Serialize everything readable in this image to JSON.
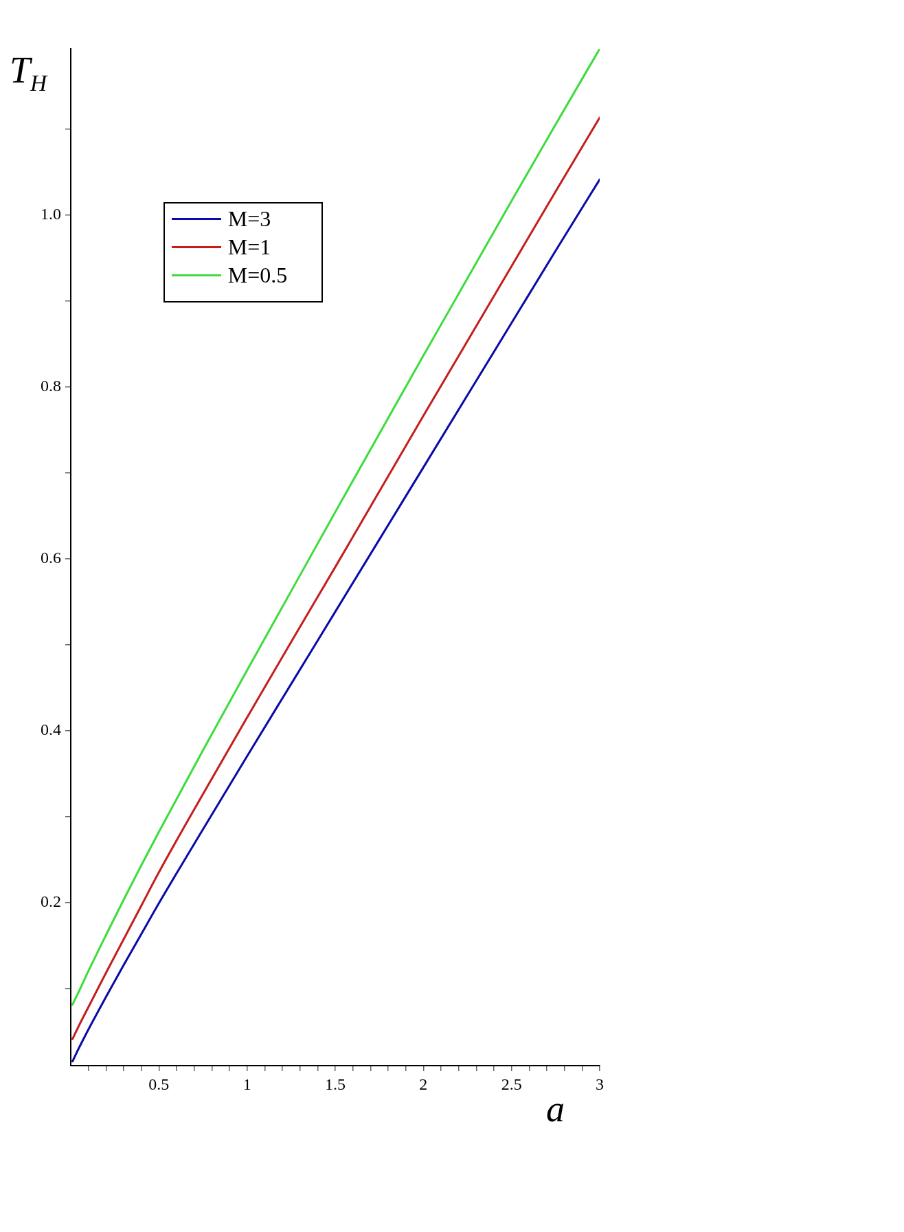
{
  "chart_data": {
    "type": "line",
    "xlabel": "a",
    "ylabel": "T$_{H}$",
    "x": [
      0.01,
      0.05,
      0.1,
      0.2,
      0.3,
      0.4,
      0.5,
      0.75,
      1,
      1.25,
      1.5,
      1.75,
      2,
      2.25,
      2.5,
      2.75,
      3
    ],
    "series": [
      {
        "name": "M=3",
        "color": "#0a0aa8",
        "values": [
          0.015,
          0.032,
          0.052,
          0.09,
          0.127,
          0.163,
          0.199,
          0.285,
          0.37,
          0.454,
          0.538,
          0.622,
          0.706,
          0.79,
          0.874,
          0.958,
          1.041
        ]
      },
      {
        "name": "M=1",
        "color": "#c41e1e",
        "values": [
          0.041,
          0.058,
          0.078,
          0.118,
          0.157,
          0.196,
          0.235,
          0.326,
          0.415,
          0.503,
          0.59,
          0.678,
          0.766,
          0.853,
          0.94,
          1.027,
          1.113
        ]
      },
      {
        "name": "M=0.5",
        "color": "#3ddc3d",
        "values": [
          0.081,
          0.098,
          0.12,
          0.162,
          0.203,
          0.243,
          0.282,
          0.377,
          0.47,
          0.562,
          0.654,
          0.745,
          0.836,
          0.926,
          1.016,
          1.105,
          1.193
        ]
      }
    ],
    "xlim": [
      0,
      3
    ],
    "ylim": [
      0.01,
      1.193
    ],
    "xticks": [
      {
        "value": 0.1,
        "label": null
      },
      {
        "value": 0.2,
        "label": null
      },
      {
        "value": 0.3,
        "label": null
      },
      {
        "value": 0.4,
        "label": null
      },
      0.5,
      {
        "value": 0.6,
        "label": null
      },
      {
        "value": 0.7,
        "label": null
      },
      {
        "value": 0.8,
        "label": null
      },
      {
        "value": 0.9,
        "label": null
      },
      1,
      {
        "value": 1.1,
        "label": null
      },
      {
        "value": 1.2,
        "label": null
      },
      {
        "value": 1.3,
        "label": null
      },
      {
        "value": 1.4,
        "label": null
      },
      1.5,
      {
        "value": 1.6,
        "label": null
      },
      {
        "value": 1.7,
        "label": null
      },
      {
        "value": 1.8,
        "label": null
      },
      {
        "value": 1.9,
        "label": null
      },
      2,
      {
        "value": 2.1,
        "label": null
      },
      {
        "value": 2.2,
        "label": null
      },
      {
        "value": 2.3,
        "label": null
      },
      {
        "value": 2.4,
        "label": null
      },
      2.5,
      {
        "value": 2.6,
        "label": null
      },
      {
        "value": 2.7,
        "label": null
      },
      {
        "value": 2.8,
        "label": null
      },
      {
        "value": 2.9,
        "label": null
      },
      3
    ],
    "yticks": [
      {
        "value": 0.1,
        "label": null
      },
      0.2,
      {
        "value": 0.3,
        "label": null
      },
      0.4,
      {
        "value": 0.5,
        "label": null
      },
      0.6,
      {
        "value": 0.7,
        "label": null
      },
      0.8,
      {
        "value": 0.9,
        "label": null
      },
      {
        "value": 1,
        "label": "1.0"
      },
      {
        "value": 1.1,
        "label": null
      }
    ],
    "legend": "top left",
    "marker": "none",
    "line_style": "solid"
  }
}
